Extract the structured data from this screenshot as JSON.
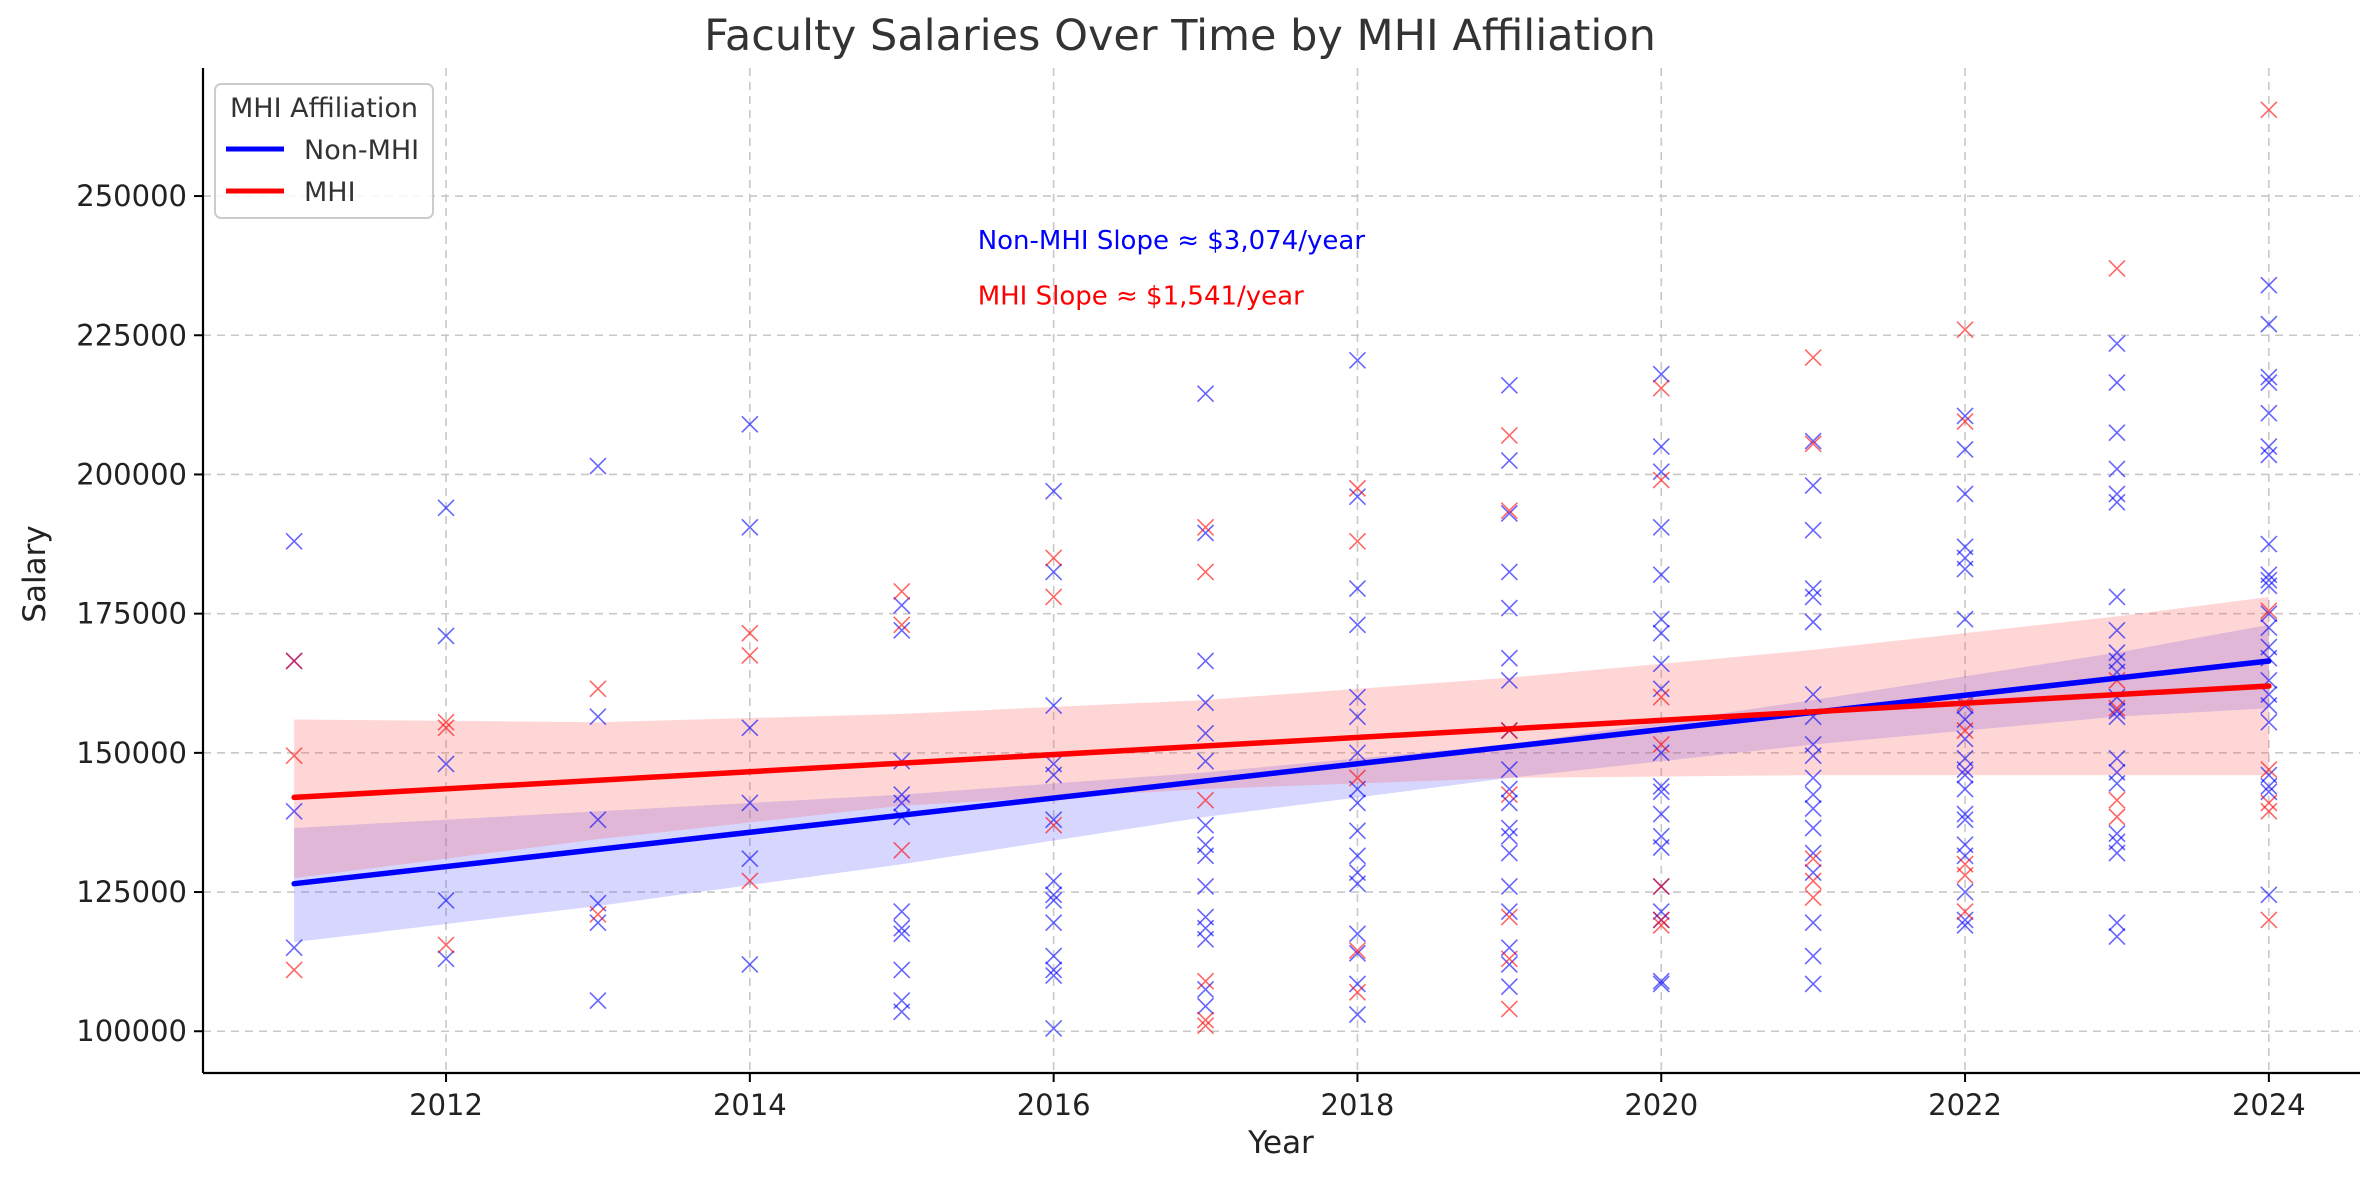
{
  "chart_data": {
    "type": "scatter",
    "title": "Faculty Salaries Over Time by MHI Affiliation",
    "xlabel": "Year",
    "ylabel": "Salary",
    "xlim": [
      2010.4,
      2024.6
    ],
    "ylim": [
      92500,
      273000
    ],
    "xticks": [
      2012,
      2014,
      2016,
      2018,
      2020,
      2022,
      2024
    ],
    "yticks": [
      100000,
      125000,
      150000,
      175000,
      200000,
      225000,
      250000
    ],
    "grid": true,
    "legend": {
      "title": "MHI Affiliation",
      "placement": "top-left",
      "entries": [
        {
          "label": "Non-MHI",
          "color": "#0000ff"
        },
        {
          "label": "MHI",
          "color": "#ff0000"
        }
      ]
    },
    "annotations": [
      {
        "text": "Non-MHI Slope ≈ $3,074/year",
        "color": "#0000ff",
        "x": 2015.5,
        "y": 240500
      },
      {
        "text": "MHI Slope ≈ $1,541/year",
        "color": "#ff0000",
        "x": 2015.5,
        "y": 230500
      }
    ],
    "series": [
      {
        "name": "Non-MHI",
        "color": "#0000ff",
        "fit": {
          "x": [
            2011,
            2024
          ],
          "y": [
            126500,
            166500
          ]
        },
        "band": {
          "x": [
            2011,
            2013,
            2015,
            2017,
            2019,
            2021,
            2023,
            2024
          ],
          "upper": [
            136500,
            139500,
            142500,
            146500,
            151500,
            159500,
            168000,
            173000
          ],
          "lower": [
            116000,
            122500,
            130000,
            138500,
            145500,
            151500,
            156500,
            158000
          ]
        },
        "points": [
          [
            2011,
            188000
          ],
          [
            2011,
            166500
          ],
          [
            2011,
            139500
          ],
          [
            2011,
            115000
          ],
          [
            2012,
            194000
          ],
          [
            2012,
            171000
          ],
          [
            2012,
            148000
          ],
          [
            2012,
            123500
          ],
          [
            2012,
            113000
          ],
          [
            2013,
            201500
          ],
          [
            2013,
            156500
          ],
          [
            2013,
            138000
          ],
          [
            2013,
            123000
          ],
          [
            2013,
            119500
          ],
          [
            2013,
            105500
          ],
          [
            2014,
            209000
          ],
          [
            2014,
            190500
          ],
          [
            2014,
            154500
          ],
          [
            2014,
            141000
          ],
          [
            2014,
            131000
          ],
          [
            2014,
            112000
          ],
          [
            2015,
            176500
          ],
          [
            2015,
            172000
          ],
          [
            2015,
            148500
          ],
          [
            2015,
            142500
          ],
          [
            2015,
            141000
          ],
          [
            2015,
            138500
          ],
          [
            2015,
            121500
          ],
          [
            2015,
            118500
          ],
          [
            2015,
            117500
          ],
          [
            2015,
            111000
          ],
          [
            2015,
            105500
          ],
          [
            2015,
            103500
          ],
          [
            2016,
            197000
          ],
          [
            2016,
            182500
          ],
          [
            2016,
            158500
          ],
          [
            2016,
            148000
          ],
          [
            2016,
            146000
          ],
          [
            2016,
            138000
          ],
          [
            2016,
            127000
          ],
          [
            2016,
            124500
          ],
          [
            2016,
            123500
          ],
          [
            2016,
            119500
          ],
          [
            2016,
            113500
          ],
          [
            2016,
            111000
          ],
          [
            2016,
            110000
          ],
          [
            2016,
            100500
          ],
          [
            2017,
            214500
          ],
          [
            2017,
            189500
          ],
          [
            2017,
            166500
          ],
          [
            2017,
            159000
          ],
          [
            2017,
            153500
          ],
          [
            2017,
            148500
          ],
          [
            2017,
            137000
          ],
          [
            2017,
            133500
          ],
          [
            2017,
            131500
          ],
          [
            2017,
            126000
          ],
          [
            2017,
            120500
          ],
          [
            2017,
            118500
          ],
          [
            2017,
            116500
          ],
          [
            2017,
            107500
          ],
          [
            2017,
            104500
          ],
          [
            2018,
            220500
          ],
          [
            2018,
            196000
          ],
          [
            2018,
            179500
          ],
          [
            2018,
            173000
          ],
          [
            2018,
            160000
          ],
          [
            2018,
            156500
          ],
          [
            2018,
            150000
          ],
          [
            2018,
            143500
          ],
          [
            2018,
            141000
          ],
          [
            2018,
            136000
          ],
          [
            2018,
            131500
          ],
          [
            2018,
            128500
          ],
          [
            2018,
            126500
          ],
          [
            2018,
            117500
          ],
          [
            2018,
            114000
          ],
          [
            2018,
            108500
          ],
          [
            2018,
            103000
          ],
          [
            2019,
            216000
          ],
          [
            2019,
            202500
          ],
          [
            2019,
            193000
          ],
          [
            2019,
            182500
          ],
          [
            2019,
            176000
          ],
          [
            2019,
            167000
          ],
          [
            2019,
            163000
          ],
          [
            2019,
            154000
          ],
          [
            2019,
            147000
          ],
          [
            2019,
            143500
          ],
          [
            2019,
            141000
          ],
          [
            2019,
            136500
          ],
          [
            2019,
            135000
          ],
          [
            2019,
            132000
          ],
          [
            2019,
            126000
          ],
          [
            2019,
            121500
          ],
          [
            2019,
            115000
          ],
          [
            2019,
            112000
          ],
          [
            2019,
            108000
          ],
          [
            2020,
            218000
          ],
          [
            2020,
            205000
          ],
          [
            2020,
            200500
          ],
          [
            2020,
            190500
          ],
          [
            2020,
            182000
          ],
          [
            2020,
            174000
          ],
          [
            2020,
            171500
          ],
          [
            2020,
            166000
          ],
          [
            2020,
            161500
          ],
          [
            2020,
            150000
          ],
          [
            2020,
            144000
          ],
          [
            2020,
            143000
          ],
          [
            2020,
            139000
          ],
          [
            2020,
            135000
          ],
          [
            2020,
            133000
          ],
          [
            2020,
            126000
          ],
          [
            2020,
            121500
          ],
          [
            2020,
            120000
          ],
          [
            2020,
            109000
          ],
          [
            2020,
            108500
          ],
          [
            2021,
            206000
          ],
          [
            2021,
            198000
          ],
          [
            2021,
            190000
          ],
          [
            2021,
            179500
          ],
          [
            2021,
            178000
          ],
          [
            2021,
            173500
          ],
          [
            2021,
            160500
          ],
          [
            2021,
            156500
          ],
          [
            2021,
            151500
          ],
          [
            2021,
            149500
          ],
          [
            2021,
            145500
          ],
          [
            2021,
            142500
          ],
          [
            2021,
            140000
          ],
          [
            2021,
            136500
          ],
          [
            2021,
            132000
          ],
          [
            2021,
            128500
          ],
          [
            2021,
            119500
          ],
          [
            2021,
            113500
          ],
          [
            2021,
            108500
          ],
          [
            2022,
            210500
          ],
          [
            2022,
            204500
          ],
          [
            2022,
            196500
          ],
          [
            2022,
            187000
          ],
          [
            2022,
            185000
          ],
          [
            2022,
            183000
          ],
          [
            2022,
            174000
          ],
          [
            2022,
            158500
          ],
          [
            2022,
            156000
          ],
          [
            2022,
            152500
          ],
          [
            2022,
            149000
          ],
          [
            2022,
            147000
          ],
          [
            2022,
            146000
          ],
          [
            2022,
            143500
          ],
          [
            2022,
            139000
          ],
          [
            2022,
            138000
          ],
          [
            2022,
            133500
          ],
          [
            2022,
            131500
          ],
          [
            2022,
            125000
          ],
          [
            2022,
            120000
          ],
          [
            2022,
            119000
          ],
          [
            2023,
            223500
          ],
          [
            2023,
            216500
          ],
          [
            2023,
            207500
          ],
          [
            2023,
            201000
          ],
          [
            2023,
            196500
          ],
          [
            2023,
            195000
          ],
          [
            2023,
            178000
          ],
          [
            2023,
            172000
          ],
          [
            2023,
            168000
          ],
          [
            2023,
            166500
          ],
          [
            2023,
            164500
          ],
          [
            2023,
            160000
          ],
          [
            2023,
            157500
          ],
          [
            2023,
            156500
          ],
          [
            2023,
            149000
          ],
          [
            2023,
            146500
          ],
          [
            2023,
            144500
          ],
          [
            2023,
            135500
          ],
          [
            2023,
            134000
          ],
          [
            2023,
            132000
          ],
          [
            2023,
            119500
          ],
          [
            2023,
            117000
          ],
          [
            2024,
            234000
          ],
          [
            2024,
            227000
          ],
          [
            2024,
            217500
          ],
          [
            2024,
            216500
          ],
          [
            2024,
            211000
          ],
          [
            2024,
            205000
          ],
          [
            2024,
            203500
          ],
          [
            2024,
            187500
          ],
          [
            2024,
            182000
          ],
          [
            2024,
            181000
          ],
          [
            2024,
            180000
          ],
          [
            2024,
            175000
          ],
          [
            2024,
            172500
          ],
          [
            2024,
            169000
          ],
          [
            2024,
            167000
          ],
          [
            2024,
            163000
          ],
          [
            2024,
            160500
          ],
          [
            2024,
            158500
          ],
          [
            2024,
            155500
          ],
          [
            2024,
            146000
          ],
          [
            2024,
            144000
          ],
          [
            2024,
            143000
          ],
          [
            2024,
            124500
          ]
        ]
      },
      {
        "name": "MHI",
        "color": "#ff0000",
        "fit": {
          "x": [
            2011,
            2024
          ],
          "y": [
            142000,
            162000
          ]
        },
        "band": {
          "x": [
            2011,
            2013,
            2015,
            2017,
            2019,
            2021,
            2023,
            2024
          ],
          "upper": [
            156000,
            155500,
            157000,
            159500,
            163500,
            168500,
            174500,
            178000
          ],
          "lower": [
            127500,
            134500,
            140500,
            143500,
            145500,
            146000,
            146000,
            146000
          ]
        },
        "points": [
          [
            2011,
            166500
          ],
          [
            2011,
            149500
          ],
          [
            2011,
            111000
          ],
          [
            2012,
            155500
          ],
          [
            2012,
            154500
          ],
          [
            2012,
            115500
          ],
          [
            2013,
            161500
          ],
          [
            2013,
            121000
          ],
          [
            2014,
            171500
          ],
          [
            2014,
            167500
          ],
          [
            2014,
            127000
          ],
          [
            2015,
            179000
          ],
          [
            2015,
            173000
          ],
          [
            2015,
            132500
          ],
          [
            2016,
            185000
          ],
          [
            2016,
            178000
          ],
          [
            2016,
            137000
          ],
          [
            2017,
            190500
          ],
          [
            2017,
            182500
          ],
          [
            2017,
            141500
          ],
          [
            2017,
            109000
          ],
          [
            2017,
            102000
          ],
          [
            2017,
            101000
          ],
          [
            2018,
            197500
          ],
          [
            2018,
            188000
          ],
          [
            2018,
            145500
          ],
          [
            2018,
            114500
          ],
          [
            2018,
            107000
          ],
          [
            2019,
            207000
          ],
          [
            2019,
            193500
          ],
          [
            2019,
            154000
          ],
          [
            2019,
            142500
          ],
          [
            2019,
            120500
          ],
          [
            2019,
            113000
          ],
          [
            2019,
            104000
          ],
          [
            2020,
            215500
          ],
          [
            2020,
            199000
          ],
          [
            2020,
            160000
          ],
          [
            2020,
            151500
          ],
          [
            2020,
            126000
          ],
          [
            2020,
            120000
          ],
          [
            2020,
            119000
          ],
          [
            2021,
            221000
          ],
          [
            2021,
            205500
          ],
          [
            2021,
            131000
          ],
          [
            2021,
            127000
          ],
          [
            2021,
            124000
          ],
          [
            2022,
            226000
          ],
          [
            2022,
            209500
          ],
          [
            2022,
            159000
          ],
          [
            2022,
            154000
          ],
          [
            2022,
            130000
          ],
          [
            2022,
            128000
          ],
          [
            2022,
            121500
          ],
          [
            2023,
            237000
          ],
          [
            2023,
            163000
          ],
          [
            2023,
            158000
          ],
          [
            2023,
            141500
          ],
          [
            2023,
            138500
          ],
          [
            2024,
            265500
          ],
          [
            2024,
            175500
          ],
          [
            2024,
            147000
          ],
          [
            2024,
            141000
          ],
          [
            2024,
            139500
          ],
          [
            2024,
            120000
          ]
        ]
      }
    ]
  }
}
